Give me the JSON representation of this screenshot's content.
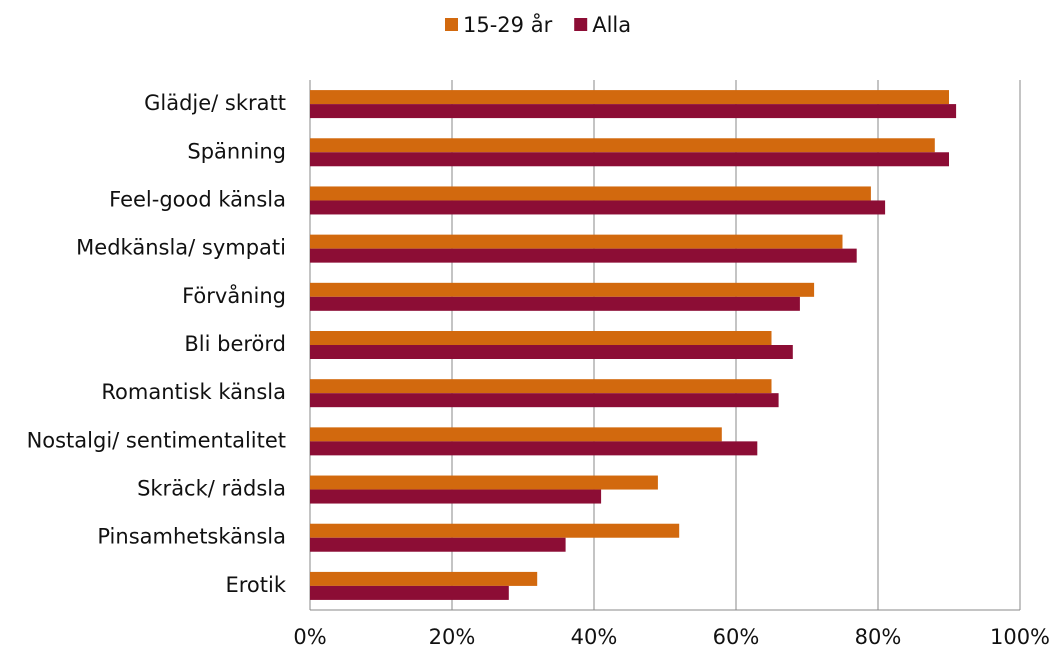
{
  "chart_data": {
    "type": "hbar",
    "categories": [
      "Glädje/ skratt",
      "Spänning",
      "Feel-good känsla",
      "Medkänsla/ sympati",
      "Förvåning",
      "Bli berörd",
      "Romantisk känsla",
      "Nostalgi/ sentimentalitet",
      "Skräck/ rädsla",
      "Pinsamhetskänsla",
      "Erotik"
    ],
    "series": [
      {
        "name": "15-29 år",
        "color": "#d2690e",
        "values": [
          90,
          88,
          79,
          75,
          71,
          65,
          65,
          58,
          49,
          52,
          32
        ]
      },
      {
        "name": "Alla",
        "color": "#8c0d35",
        "values": [
          91,
          90,
          81,
          77,
          69,
          68,
          66,
          63,
          41,
          36,
          28
        ]
      }
    ],
    "xlim": [
      0,
      100
    ],
    "xticks": [
      {
        "value": 0,
        "label": "0%"
      },
      {
        "value": 20,
        "label": "20%"
      },
      {
        "value": 40,
        "label": "40%"
      },
      {
        "value": 60,
        "label": "60%"
      },
      {
        "value": 80,
        "label": "80%"
      },
      {
        "value": 100,
        "label": "100%"
      }
    ],
    "grid": true,
    "legend": "top"
  }
}
